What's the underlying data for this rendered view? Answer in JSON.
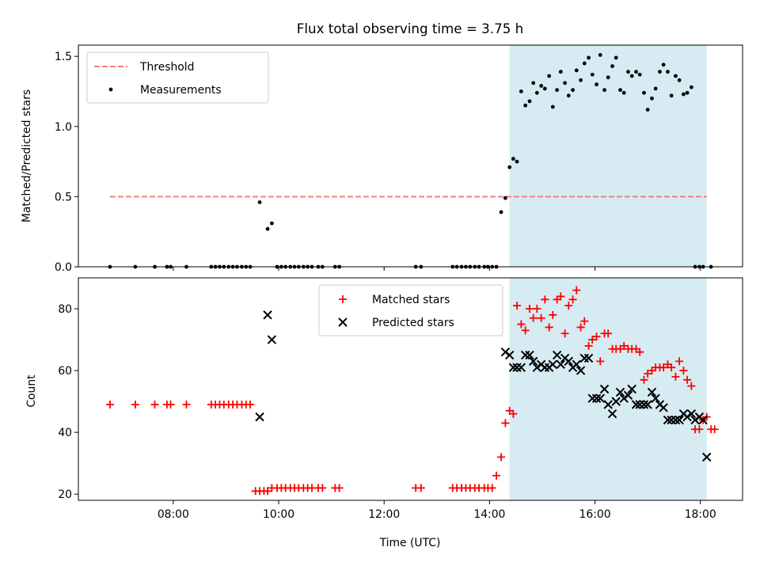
{
  "figure": {
    "title": "Flux total observing time = 3.75 h",
    "xlabel": "Time (UTC)"
  },
  "colors": {
    "threshold": "#f08080",
    "measurement": "#000000",
    "matched": "#ff0000",
    "predicted": "#000000",
    "shade": "#add8e6"
  },
  "chart_data": [
    {
      "type": "scatter",
      "title": "Flux total observing time = 3.75 h",
      "xlabel": "",
      "ylabel": "Matched/Predicted stars",
      "x_unit": "hours UTC",
      "xlim": [
        6.2,
        18.8
      ],
      "ylim": [
        0,
        1.58
      ],
      "xticks": [
        "08:00",
        "10:00",
        "12:00",
        "14:00",
        "16:00",
        "18:00"
      ],
      "yticks": [
        "0.0",
        "0.5",
        "1.0",
        "1.5"
      ],
      "shaded_span": [
        14.38,
        18.12
      ],
      "legend": {
        "placement": "top-left",
        "entries": [
          "Threshold",
          "Measurements"
        ]
      },
      "series": [
        {
          "name": "Threshold",
          "kind": "dashed-line",
          "x": [
            6.8,
            18.12
          ],
          "y": [
            0.5,
            0.5
          ]
        },
        {
          "name": "Measurements",
          "kind": "points",
          "x": [
            6.8,
            7.28,
            7.65,
            7.88,
            7.95,
            8.25,
            8.72,
            8.8,
            8.88,
            8.96,
            9.05,
            9.13,
            9.21,
            9.3,
            9.38,
            9.46,
            9.64,
            9.79,
            9.87,
            9.97,
            10.05,
            10.13,
            10.22,
            10.3,
            10.38,
            10.47,
            10.55,
            10.63,
            10.75,
            10.83,
            11.07,
            11.15,
            12.6,
            12.7,
            13.3,
            13.38,
            13.47,
            13.55,
            13.63,
            13.72,
            13.8,
            13.9,
            13.97,
            14.05,
            14.13,
            14.22,
            14.3,
            14.38,
            14.45,
            14.52,
            14.6,
            14.68,
            14.76,
            14.83,
            14.9,
            14.98,
            15.05,
            15.13,
            15.2,
            15.28,
            15.35,
            15.43,
            15.5,
            15.58,
            15.65,
            15.73,
            15.8,
            15.88,
            15.95,
            16.03,
            16.1,
            16.18,
            16.25,
            16.33,
            16.4,
            16.48,
            16.55,
            16.63,
            16.7,
            16.78,
            16.85,
            16.93,
            17.0,
            17.08,
            17.15,
            17.23,
            17.3,
            17.38,
            17.45,
            17.53,
            17.6,
            17.68,
            17.75,
            17.83,
            17.9,
            17.98,
            18.05,
            18.2
          ],
          "y": [
            0,
            0,
            0,
            0,
            0,
            0,
            0,
            0,
            0,
            0,
            0,
            0,
            0,
            0,
            0,
            0,
            0.46,
            0.27,
            0.31,
            0,
            0,
            0,
            0,
            0,
            0,
            0,
            0,
            0,
            0,
            0,
            0,
            0,
            0,
            0,
            0,
            0,
            0,
            0,
            0,
            0,
            0,
            0,
            0,
            0,
            0,
            0.39,
            0.49,
            0.71,
            0.77,
            0.75,
            1.25,
            1.15,
            1.18,
            1.31,
            1.24,
            1.29,
            1.27,
            1.36,
            1.14,
            1.26,
            1.39,
            1.31,
            1.22,
            1.26,
            1.4,
            1.33,
            1.45,
            1.49,
            1.37,
            1.3,
            1.51,
            1.26,
            1.35,
            1.43,
            1.49,
            1.26,
            1.24,
            1.39,
            1.36,
            1.39,
            1.37,
            1.24,
            1.12,
            1.2,
            1.27,
            1.39,
            1.44,
            1.39,
            1.22,
            1.36,
            1.33,
            1.23,
            1.24,
            1.28,
            0,
            0,
            0,
            0
          ]
        }
      ]
    },
    {
      "type": "scatter",
      "xlabel": "Time (UTC)",
      "ylabel": "Count",
      "x_unit": "hours UTC",
      "xlim": [
        6.2,
        18.8
      ],
      "ylim": [
        18,
        90
      ],
      "xticks": [
        "08:00",
        "10:00",
        "12:00",
        "14:00",
        "16:00",
        "18:00"
      ],
      "yticks": [
        "20",
        "40",
        "60",
        "80"
      ],
      "shaded_span": [
        14.38,
        18.12
      ],
      "legend": {
        "placement": "top-center",
        "entries": [
          "Matched stars",
          "Predicted stars"
        ]
      },
      "series": [
        {
          "name": "Matched stars",
          "marker": "plus",
          "x": [
            6.8,
            7.28,
            7.65,
            7.88,
            7.95,
            8.25,
            8.72,
            8.8,
            8.88,
            8.96,
            9.05,
            9.13,
            9.21,
            9.3,
            9.38,
            9.46,
            9.56,
            9.64,
            9.72,
            9.79,
            9.87,
            9.97,
            10.05,
            10.13,
            10.22,
            10.3,
            10.38,
            10.47,
            10.55,
            10.63,
            10.75,
            10.83,
            11.07,
            11.15,
            12.6,
            12.7,
            13.3,
            13.38,
            13.47,
            13.55,
            13.63,
            13.72,
            13.8,
            13.9,
            13.97,
            14.05,
            14.13,
            14.22,
            14.3,
            14.38,
            14.45,
            14.52,
            14.6,
            14.68,
            14.76,
            14.83,
            14.9,
            14.98,
            15.05,
            15.13,
            15.2,
            15.28,
            15.35,
            15.43,
            15.5,
            15.58,
            15.65,
            15.73,
            15.8,
            15.88,
            15.95,
            16.03,
            16.1,
            16.18,
            16.25,
            16.33,
            16.4,
            16.48,
            16.55,
            16.63,
            16.7,
            16.78,
            16.85,
            16.93,
            17.0,
            17.08,
            17.15,
            17.23,
            17.3,
            17.38,
            17.45,
            17.53,
            17.6,
            17.68,
            17.75,
            17.83,
            17.9,
            17.98,
            18.05,
            18.12,
            18.2,
            18.27
          ],
          "y": [
            49,
            49,
            49,
            49,
            49,
            49,
            49,
            49,
            49,
            49,
            49,
            49,
            49,
            49,
            49,
            49,
            21,
            21,
            21,
            21,
            22,
            22,
            22,
            22,
            22,
            22,
            22,
            22,
            22,
            22,
            22,
            22,
            22,
            22,
            22,
            22,
            22,
            22,
            22,
            22,
            22,
            22,
            22,
            22,
            22,
            22,
            26,
            32,
            43,
            47,
            46,
            81,
            75,
            73,
            80,
            77,
            80,
            77,
            83,
            74,
            78,
            83,
            84,
            72,
            81,
            83,
            86,
            74,
            76,
            68,
            70,
            71,
            63,
            72,
            72,
            67,
            67,
            67,
            68,
            67,
            67,
            67,
            66,
            57,
            59,
            60,
            61,
            61,
            61,
            62,
            61,
            58,
            63,
            60,
            57,
            55,
            41,
            41,
            44,
            45,
            41,
            41
          ]
        },
        {
          "name": "Predicted stars",
          "marker": "x",
          "x": [
            9.64,
            9.79,
            9.87,
            14.3,
            14.38,
            14.45,
            14.52,
            14.6,
            14.68,
            14.76,
            14.83,
            14.9,
            14.98,
            15.05,
            15.13,
            15.2,
            15.28,
            15.35,
            15.43,
            15.5,
            15.58,
            15.65,
            15.73,
            15.8,
            15.88,
            15.95,
            16.03,
            16.1,
            16.18,
            16.25,
            16.33,
            16.4,
            16.48,
            16.55,
            16.63,
            16.7,
            16.78,
            16.85,
            16.93,
            17.0,
            17.08,
            17.15,
            17.23,
            17.3,
            17.38,
            17.45,
            17.53,
            17.6,
            17.68,
            17.75,
            17.83,
            17.9,
            17.98,
            18.05,
            18.12
          ],
          "y": [
            45,
            78,
            70,
            66,
            65,
            61,
            61,
            61,
            65,
            65,
            63,
            61,
            62,
            61,
            61,
            62,
            65,
            62,
            64,
            63,
            61,
            62,
            60,
            64,
            64,
            51,
            51,
            51,
            54,
            49,
            46,
            50,
            53,
            51,
            52,
            54,
            49,
            49,
            49,
            49,
            53,
            51,
            49,
            48,
            44,
            44,
            44,
            44,
            46,
            45,
            46,
            44,
            45,
            44,
            32
          ]
        }
      ]
    }
  ]
}
